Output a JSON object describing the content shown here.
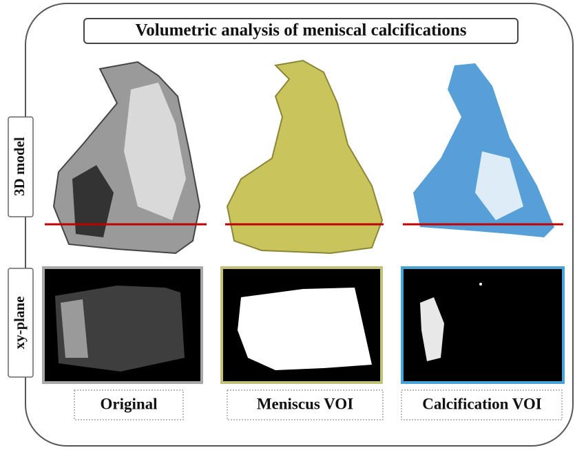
{
  "title": "Volumetric analysis of meniscal calcifications",
  "row_labels": [
    "3D model",
    "xy-plane"
  ],
  "column_labels": [
    "Original",
    "Meniscus VOI",
    "Calcification VOI"
  ]
}
